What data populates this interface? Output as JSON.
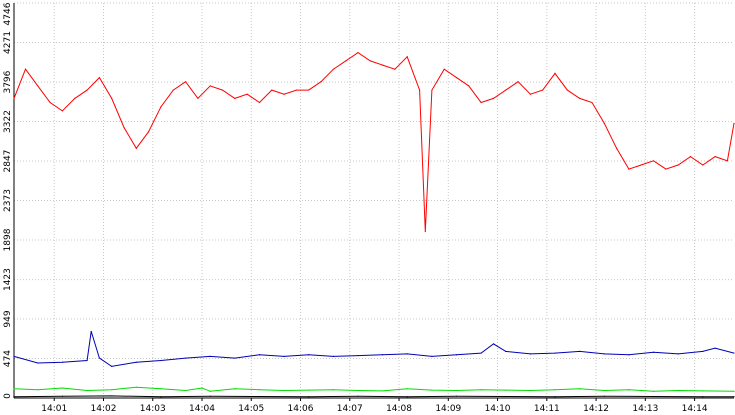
{
  "chart_data": {
    "type": "line",
    "title": "",
    "xlabel": "",
    "ylabel": "",
    "grid": true,
    "legend": "none",
    "ylim": [
      0,
      4746
    ],
    "xlim": [
      "14:00:11",
      "14:14:48"
    ],
    "yticks": [
      0,
      474,
      949,
      1423,
      1898,
      2373,
      2847,
      3322,
      3796,
      4271,
      4746
    ],
    "xticks": [
      "14:01",
      "14:02",
      "14:03",
      "14:04",
      "14:05",
      "14:06",
      "14:07",
      "14:08",
      "14:09",
      "14:10",
      "14:11",
      "14:12",
      "14:13",
      "14:14"
    ],
    "series": [
      {
        "color": "#ff0000",
        "x": [
          "14:00:11",
          "14:00:25",
          "14:00:40",
          "14:00:55",
          "14:01:10",
          "14:01:25",
          "14:01:40",
          "14:01:55",
          "14:02:10",
          "14:02:25",
          "14:02:40",
          "14:02:55",
          "14:03:10",
          "14:03:25",
          "14:03:40",
          "14:03:55",
          "14:04:10",
          "14:04:25",
          "14:04:40",
          "14:04:55",
          "14:05:10",
          "14:05:25",
          "14:05:40",
          "14:05:55",
          "14:06:10",
          "14:06:25",
          "14:06:40",
          "14:06:55",
          "14:07:10",
          "14:07:25",
          "14:07:40",
          "14:07:55",
          "14:08:10",
          "14:08:25",
          "14:08:32",
          "14:08:40",
          "14:08:55",
          "14:09:10",
          "14:09:25",
          "14:09:40",
          "14:09:55",
          "14:10:10",
          "14:10:25",
          "14:10:40",
          "14:10:55",
          "14:11:10",
          "14:11:25",
          "14:11:40",
          "14:11:55",
          "14:12:10",
          "14:12:25",
          "14:12:40",
          "14:12:55",
          "14:13:10",
          "14:13:25",
          "14:13:40",
          "14:13:55",
          "14:14:10",
          "14:14:25",
          "14:14:40",
          "14:14:48"
        ],
        "y": [
          3600,
          3950,
          3750,
          3550,
          3450,
          3600,
          3700,
          3850,
          3600,
          3250,
          3000,
          3200,
          3500,
          3700,
          3800,
          3600,
          3750,
          3700,
          3600,
          3650,
          3550,
          3700,
          3650,
          3700,
          3700,
          3800,
          3950,
          4050,
          4150,
          4050,
          4000,
          3950,
          4100,
          3700,
          2000,
          3700,
          3950,
          3850,
          3750,
          3550,
          3600,
          3700,
          3800,
          3650,
          3700,
          3900,
          3700,
          3600,
          3550,
          3300,
          3000,
          2750,
          2800,
          2850,
          2750,
          2800,
          2900,
          2800,
          2900,
          2850,
          3300
        ]
      },
      {
        "color": "#0000b4",
        "x": [
          "14:00:11",
          "14:00:40",
          "14:01:10",
          "14:01:40",
          "14:01:45",
          "14:01:55",
          "14:02:10",
          "14:02:40",
          "14:03:10",
          "14:03:40",
          "14:04:10",
          "14:04:40",
          "14:05:10",
          "14:05:40",
          "14:06:10",
          "14:06:40",
          "14:07:10",
          "14:07:40",
          "14:08:10",
          "14:08:40",
          "14:09:10",
          "14:09:40",
          "14:09:55",
          "14:10:10",
          "14:10:40",
          "14:11:10",
          "14:11:40",
          "14:12:10",
          "14:12:40",
          "14:13:10",
          "14:13:40",
          "14:14:10",
          "14:14:25",
          "14:14:48"
        ],
        "y": [
          500,
          420,
          430,
          450,
          800,
          480,
          380,
          430,
          450,
          480,
          500,
          480,
          520,
          500,
          520,
          500,
          510,
          520,
          530,
          500,
          520,
          540,
          650,
          560,
          530,
          540,
          560,
          530,
          520,
          550,
          530,
          560,
          600,
          540
        ]
      },
      {
        "color": "#00dc00",
        "x": [
          "14:00:11",
          "14:00:40",
          "14:01:10",
          "14:01:40",
          "14:02:10",
          "14:02:40",
          "14:03:10",
          "14:03:40",
          "14:04:00",
          "14:04:10",
          "14:04:40",
          "14:05:10",
          "14:05:40",
          "14:06:10",
          "14:06:40",
          "14:07:10",
          "14:07:40",
          "14:08:10",
          "14:08:40",
          "14:09:10",
          "14:09:40",
          "14:10:10",
          "14:10:40",
          "14:11:10",
          "14:11:40",
          "14:12:10",
          "14:12:40",
          "14:13:10",
          "14:13:40",
          "14:14:10",
          "14:14:48"
        ],
        "y": [
          110,
          100,
          120,
          90,
          100,
          130,
          110,
          90,
          120,
          80,
          110,
          100,
          90,
          95,
          100,
          90,
          85,
          110,
          95,
          90,
          100,
          95,
          90,
          100,
          110,
          90,
          100,
          80,
          90,
          85,
          80
        ]
      },
      {
        "color": "#000000",
        "x": [
          "14:00:11",
          "14:01:10",
          "14:02:10",
          "14:03:10",
          "14:04:10",
          "14:05:10",
          "14:06:10",
          "14:07:10",
          "14:08:10",
          "14:09:10",
          "14:10:10",
          "14:11:10",
          "14:12:10",
          "14:13:10",
          "14:14:10",
          "14:14:48"
        ],
        "y": [
          15,
          20,
          25,
          15,
          20,
          18,
          15,
          20,
          15,
          22,
          18,
          15,
          20,
          18,
          15,
          15
        ]
      }
    ]
  }
}
